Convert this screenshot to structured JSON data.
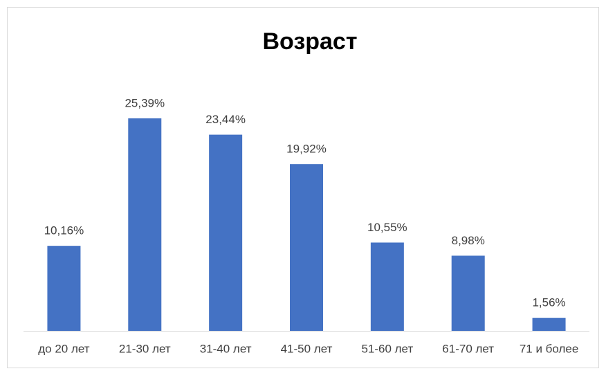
{
  "chart_data": {
    "type": "bar",
    "title": "Возраст",
    "categories": [
      "до 20 лет",
      "21-30 лет",
      "31-40 лет",
      "41-50 лет",
      "51-60 лет",
      "61-70 лет",
      "71 и более"
    ],
    "values": [
      10.16,
      25.39,
      23.44,
      19.92,
      10.55,
      8.98,
      1.56
    ],
    "value_labels": [
      "10,16%",
      "25,39%",
      "23,44%",
      "19,92%",
      "10,55%",
      "8,98%",
      "1,56%"
    ],
    "color": "#4472c4"
  }
}
